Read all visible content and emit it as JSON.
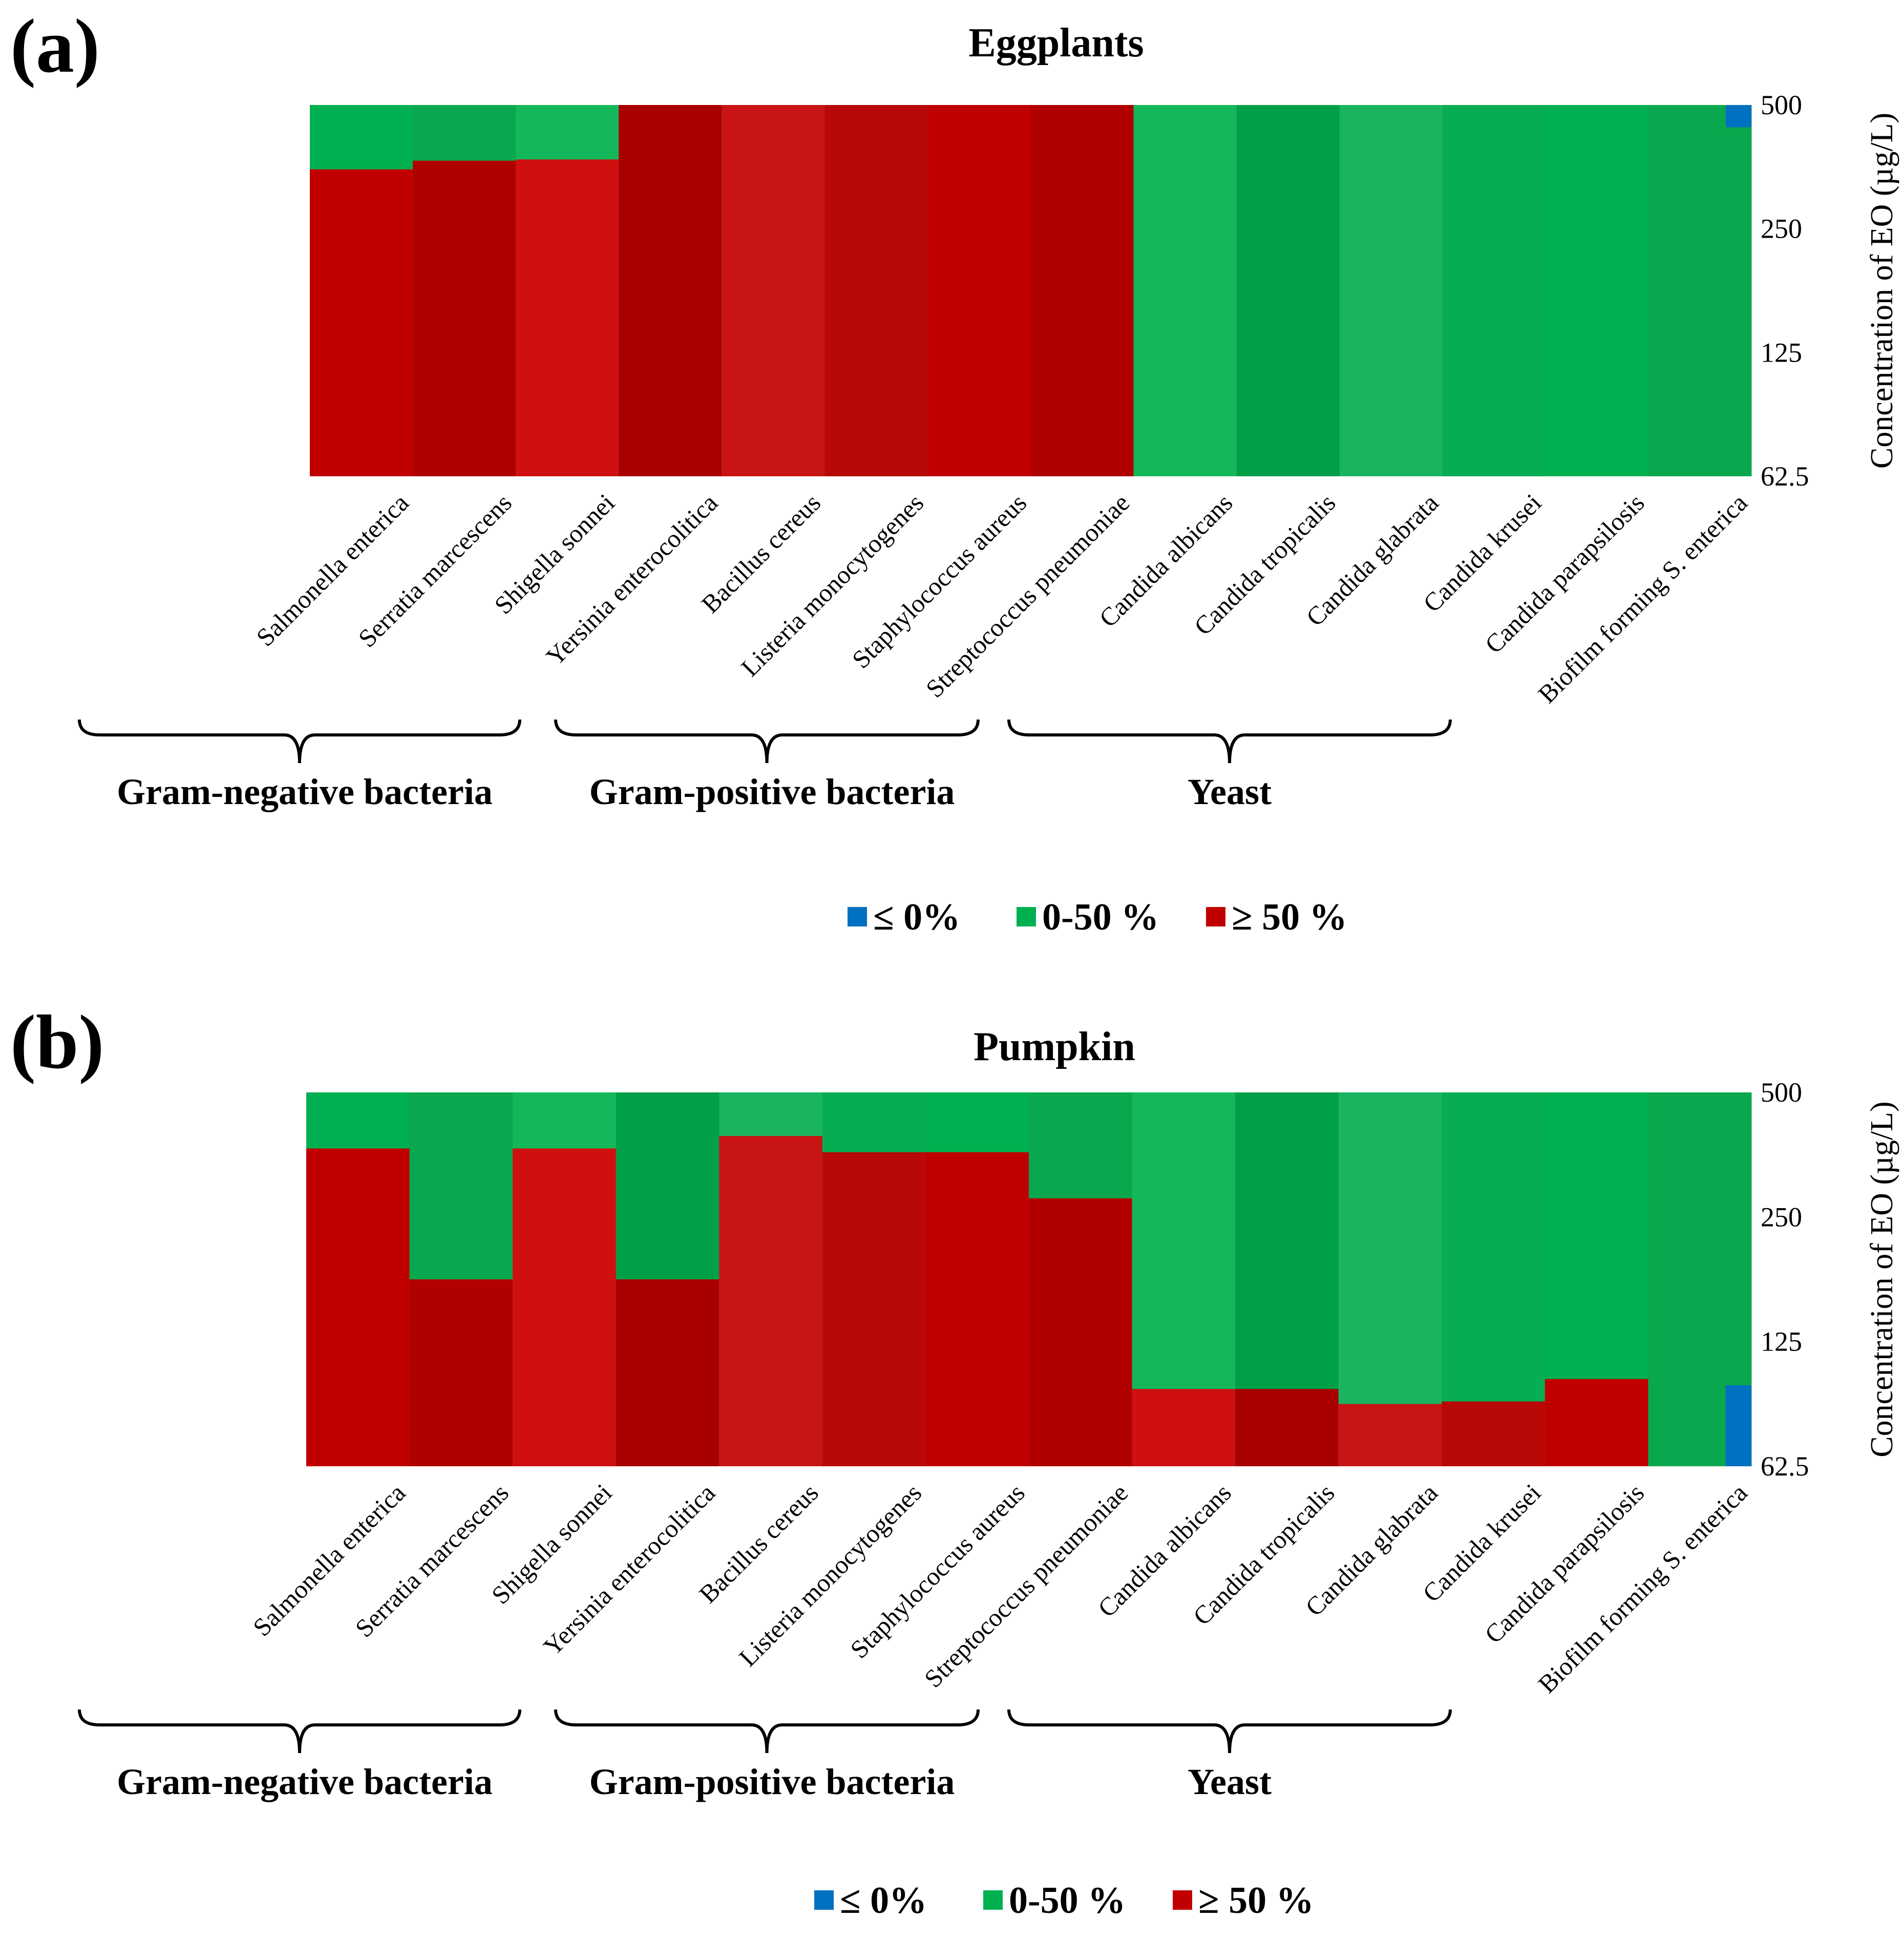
{
  "chart_data": [
    {
      "panel": "(a)",
      "type": "heatmap",
      "title": "Eggplants",
      "ylabel": "Concentration of EO (µg/L)",
      "y_ticks": [
        "500",
        "250",
        "125",
        "62.5"
      ],
      "categories": [
        "Salmonella enterica",
        "Serratia marcescens",
        "Shigella sonnei",
        "Yersinia enterocolitica",
        "Bacillus cereus",
        "Listeria monocytogenes",
        "Staphylococcus aureus",
        "Streptococcus pneumoniae",
        "Candida albicans",
        "Candida tropicalis",
        "Candida glabrata",
        "Candida krusei",
        "Candida parapsilosis",
        "Biofilm forming S. enterica"
      ],
      "boundary_green_to_red": [
        0.52,
        0.45,
        0.44,
        0.0,
        0.0,
        0.0,
        0.0,
        0.0,
        3.47,
        3.5,
        3.58,
        3.45,
        3.36,
        3.48
      ],
      "boundary_blue": [
        0,
        0,
        0,
        0,
        0,
        0,
        0,
        0,
        0,
        0,
        0,
        0,
        0,
        0.18
      ],
      "groups": [
        {
          "label": "Gram-negative bacteria",
          "from": 0,
          "to": 3
        },
        {
          "label": "Gram-positive bacteria",
          "from": 4,
          "to": 7
        },
        {
          "label": "Yeast",
          "from": 8,
          "to": 11
        }
      ],
      "legend": [
        {
          "label": "≤ 0%",
          "color": "#0070c0"
        },
        {
          "label": "0-50 %",
          "color": "#00b050"
        },
        {
          "label": "≥ 50 %",
          "color": "#c00000"
        }
      ]
    },
    {
      "panel": "(b)",
      "type": "heatmap",
      "title": "Pumpkin",
      "ylabel": "Concentration of EO (µg/L)",
      "y_ticks": [
        "500",
        "250",
        "125",
        "62.5"
      ],
      "categories": [
        "Salmonella enterica",
        "Serratia marcescens",
        "Shigella sonnei",
        "Yersinia enterocolitica",
        "Bacillus cereus",
        "Listeria monocytogenes",
        "Staphylococcus aureus",
        "Streptococcus pneumoniae",
        "Candida albicans",
        "Candida tropicalis",
        "Candida glabrata",
        "Candida krusei",
        "Candida parapsilosis",
        "Biofilm forming S. enterica"
      ],
      "boundary_green_to_red": [
        0.45,
        1.5,
        0.45,
        1.5,
        0.35,
        0.48,
        0.48,
        0.85,
        2.38,
        2.38,
        2.5,
        2.48,
        2.3,
        3.0
      ],
      "boundary_blue": [
        0,
        0,
        0,
        0,
        0,
        0,
        0,
        0,
        0,
        0,
        0,
        0,
        0,
        0.65
      ],
      "groups": [
        {
          "label": "Gram-negative bacteria",
          "from": 0,
          "to": 3
        },
        {
          "label": "Gram-positive bacteria",
          "from": 4,
          "to": 7
        },
        {
          "label": "Yeast",
          "from": 8,
          "to": 11
        }
      ],
      "legend": [
        {
          "label": "≤ 0%",
          "color": "#0070c0"
        },
        {
          "label": "0-50 %",
          "color": "#00b050"
        },
        {
          "label": "≥ 50 %",
          "color": "#c00000"
        }
      ]
    }
  ]
}
